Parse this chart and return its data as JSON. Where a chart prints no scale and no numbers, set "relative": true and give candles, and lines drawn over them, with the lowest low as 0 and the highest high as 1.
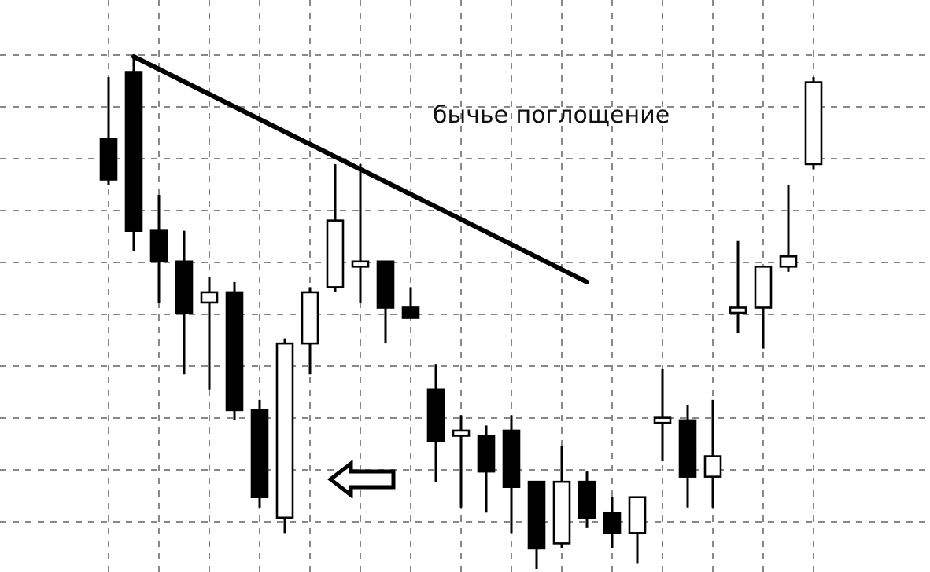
{
  "chart_data": {
    "type": "candlestick",
    "relative": true,
    "grid": true,
    "categories": [
      null,
      null,
      null,
      null,
      null,
      null,
      null,
      null,
      null,
      null,
      null,
      null,
      null,
      null,
      null,
      null,
      null,
      null,
      null,
      null,
      null,
      null,
      null,
      null,
      null,
      null,
      null,
      null,
      null
    ],
    "series": [
      {
        "color": "#000000",
        "ohlc": [
          [
            0.84,
            0.96,
            0.75,
            0.76
          ],
          [
            0.97,
            1.0,
            0.62,
            0.66
          ],
          [
            0.66,
            0.73,
            0.52,
            0.6
          ],
          [
            0.6,
            0.66,
            0.38,
            0.5
          ],
          [
            0.52,
            0.57,
            0.35,
            0.54
          ],
          [
            0.54,
            0.56,
            0.29,
            0.31
          ],
          [
            0.31,
            0.33,
            0.12,
            0.14
          ],
          [
            0.1,
            0.45,
            0.07,
            0.44
          ],
          [
            0.44,
            0.55,
            0.38,
            0.54
          ],
          [
            0.55,
            0.79,
            0.54,
            0.68
          ],
          [
            0.59,
            0.79,
            0.52,
            0.6
          ],
          [
            0.6,
            0.6,
            0.44,
            0.51
          ],
          [
            0.51,
            0.55,
            0.49,
            0.49
          ],
          [
            0.35,
            0.4,
            0.17,
            0.25
          ],
          [
            0.26,
            0.3,
            0.12,
            0.27
          ],
          [
            0.26,
            0.28,
            0.11,
            0.19
          ],
          [
            0.27,
            0.3,
            0.07,
            0.16
          ],
          [
            0.17,
            0.17,
            0.0,
            0.04
          ],
          [
            0.05,
            0.24,
            0.04,
            0.17
          ],
          [
            0.17,
            0.19,
            0.08,
            0.1
          ],
          [
            0.11,
            0.14,
            0.04,
            0.07
          ],
          [
            0.07,
            0.14,
            0.01,
            0.14
          ],
          [
            0.285,
            0.39,
            0.21,
            0.295
          ],
          [
            0.29,
            0.32,
            0.12,
            0.18
          ],
          [
            0.18,
            0.33,
            0.12,
            0.22
          ],
          [
            0.5,
            0.64,
            0.46,
            0.51
          ],
          [
            0.51,
            0.59,
            0.43,
            0.59
          ],
          [
            0.59,
            0.75,
            0.58,
            0.61
          ],
          [
            0.79,
            0.96,
            0.78,
            0.95
          ]
        ]
      },
      {
        "type": "line",
        "color": "#000000",
        "values": [
          null,
          1.0,
          null,
          null,
          null,
          null,
          null,
          null,
          null,
          null,
          null,
          null,
          null,
          null,
          null,
          null,
          null,
          null,
          null,
          0.56,
          null,
          null,
          null,
          null,
          null,
          null,
          null,
          null,
          null
        ]
      }
    ],
    "annotations": [
      "бычье поглощение"
    ]
  }
}
